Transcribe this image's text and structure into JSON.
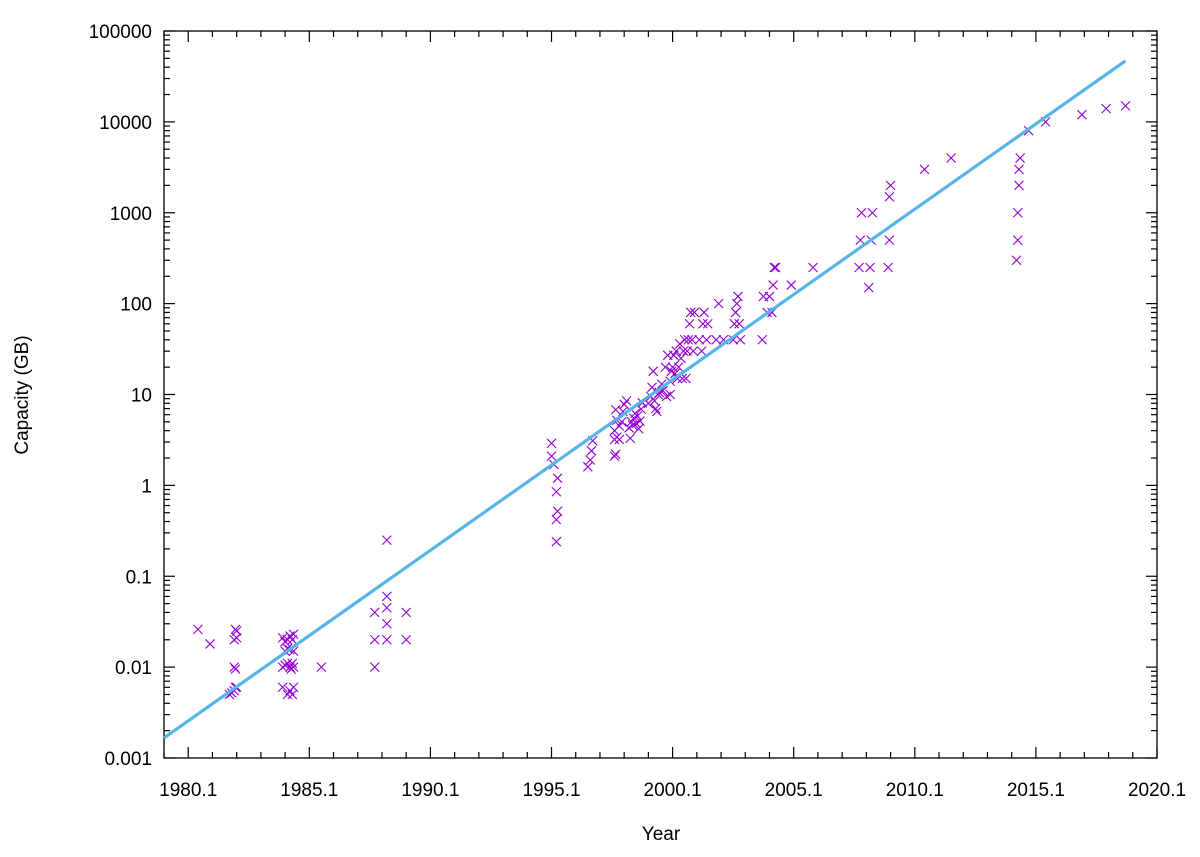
{
  "chart_data": {
    "type": "scatter",
    "xlabel": "Year",
    "ylabel": "Capacity (GB)",
    "xscale": "linear",
    "yscale": "log",
    "xlim": [
      1979.1,
      2020.1
    ],
    "ylim": [
      0.001,
      100000
    ],
    "xticks": [
      1980.1,
      1985.1,
      1990.1,
      1995.1,
      2000.1,
      2005.1,
      2010.1,
      2015.1,
      2020.1
    ],
    "xtick_labels": [
      "1980.1",
      "1985.1",
      "1990.1",
      "1995.1",
      "2000.1",
      "2005.1",
      "2010.1",
      "2015.1",
      "2020.1"
    ],
    "yticks": [
      0.001,
      0.01,
      0.1,
      1,
      10,
      100,
      1000,
      10000,
      100000
    ],
    "ytick_labels": [
      "0.001",
      "0.01",
      "0.1",
      "1",
      "10",
      "100",
      "1000",
      "10000",
      "100000"
    ],
    "grid": false,
    "legend": "none",
    "colors": {
      "points": "#9400d3",
      "fit": "#56b4e9"
    },
    "fit_line": [
      [
        1979.15,
        0.0017
      ],
      [
        2018.75,
        46000
      ]
    ],
    "points": [
      [
        1980.5,
        0.026
      ],
      [
        1981.0,
        0.018
      ],
      [
        1981.8,
        0.005
      ],
      [
        1981.9,
        0.0052
      ],
      [
        1982.0,
        0.0055
      ],
      [
        1982.05,
        0.006
      ],
      [
        1982.1,
        0.006
      ],
      [
        1982.0,
        0.01
      ],
      [
        1982.05,
        0.0095
      ],
      [
        1982.0,
        0.02
      ],
      [
        1982.05,
        0.026
      ],
      [
        1982.1,
        0.021
      ],
      [
        1982.1,
        0.025
      ],
      [
        1984.0,
        0.006
      ],
      [
        1984.2,
        0.005
      ],
      [
        1984.3,
        0.0055
      ],
      [
        1984.4,
        0.005
      ],
      [
        1984.45,
        0.006
      ],
      [
        1984.0,
        0.01
      ],
      [
        1984.1,
        0.0105
      ],
      [
        1984.2,
        0.011
      ],
      [
        1984.3,
        0.01
      ],
      [
        1984.35,
        0.0095
      ],
      [
        1984.4,
        0.011
      ],
      [
        1984.45,
        0.01
      ],
      [
        1984.1,
        0.015
      ],
      [
        1984.2,
        0.016
      ],
      [
        1984.3,
        0.0155
      ],
      [
        1984.45,
        0.015
      ],
      [
        1984.0,
        0.021
      ],
      [
        1984.1,
        0.019
      ],
      [
        1984.2,
        0.02
      ],
      [
        1984.3,
        0.022
      ],
      [
        1984.4,
        0.02
      ],
      [
        1984.45,
        0.023
      ],
      [
        1985.6,
        0.01
      ],
      [
        1987.8,
        0.01
      ],
      [
        1987.8,
        0.02
      ],
      [
        1987.8,
        0.04
      ],
      [
        1988.3,
        0.02
      ],
      [
        1988.3,
        0.03
      ],
      [
        1988.3,
        0.045
      ],
      [
        1988.3,
        0.06
      ],
      [
        1988.3,
        0.25
      ],
      [
        1989.1,
        0.02
      ],
      [
        1989.1,
        0.04
      ],
      [
        1995.1,
        2.9
      ],
      [
        1995.1,
        2.1
      ],
      [
        1995.2,
        1.7
      ],
      [
        1995.35,
        1.2
      ],
      [
        1995.3,
        0.85
      ],
      [
        1995.35,
        0.52
      ],
      [
        1995.3,
        0.42
      ],
      [
        1995.3,
        0.24
      ],
      [
        1996.6,
        1.6
      ],
      [
        1996.7,
        1.9
      ],
      [
        1996.75,
        2.4
      ],
      [
        1996.8,
        3.1
      ],
      [
        1997.7,
        2.1
      ],
      [
        1997.75,
        2.2
      ],
      [
        1997.7,
        3.2
      ],
      [
        1997.8,
        3.4
      ],
      [
        1997.9,
        3.2
      ],
      [
        1997.7,
        4.0
      ],
      [
        1997.9,
        4.5
      ],
      [
        1997.8,
        5.2
      ],
      [
        1997.75,
        6.8
      ],
      [
        1998.0,
        5.0
      ],
      [
        1998.05,
        6.5
      ],
      [
        1998.1,
        7.8
      ],
      [
        1998.2,
        8.5
      ],
      [
        1998.3,
        4.3
      ],
      [
        1998.35,
        3.3
      ],
      [
        1998.4,
        5.0
      ],
      [
        1998.45,
        4.6
      ],
      [
        1998.5,
        5.5
      ],
      [
        1998.55,
        6.2
      ],
      [
        1998.6,
        4.8
      ],
      [
        1998.65,
        5.8
      ],
      [
        1998.7,
        4.2
      ],
      [
        1998.75,
        5.1
      ],
      [
        1998.8,
        6.9
      ],
      [
        1998.85,
        8.1
      ],
      [
        1999.1,
        8.0
      ],
      [
        1999.2,
        9.5
      ],
      [
        1999.25,
        12.0
      ],
      [
        1999.3,
        18.0
      ],
      [
        1999.35,
        8.5
      ],
      [
        1999.4,
        7.0
      ],
      [
        1999.45,
        6.5
      ],
      [
        1999.5,
        10.0
      ],
      [
        1999.55,
        10.5
      ],
      [
        1999.65,
        13.0
      ],
      [
        1999.7,
        11.0
      ],
      [
        1999.8,
        20.0
      ],
      [
        1999.9,
        27.0
      ],
      [
        1999.85,
        9.5
      ],
      [
        2000.0,
        10.0
      ],
      [
        2000.0,
        14.0
      ],
      [
        2000.05,
        18.0
      ],
      [
        2000.1,
        20.0
      ],
      [
        2000.15,
        27.0
      ],
      [
        2000.2,
        17.0
      ],
      [
        2000.25,
        30.0
      ],
      [
        2000.3,
        15.0
      ],
      [
        2000.35,
        20.0
      ],
      [
        2000.4,
        36.0
      ],
      [
        2000.45,
        25.0
      ],
      [
        2000.5,
        15.0
      ],
      [
        2000.55,
        30.0
      ],
      [
        2000.6,
        40.0
      ],
      [
        2000.65,
        15.0
      ],
      [
        2000.7,
        30.0
      ],
      [
        2000.75,
        40.0
      ],
      [
        2000.8,
        60.0
      ],
      [
        2000.85,
        80.0
      ],
      [
        2000.9,
        40.0
      ],
      [
        2000.95,
        30.0
      ],
      [
        2001.0,
        80.0
      ],
      [
        2001.2,
        40.0
      ],
      [
        2001.3,
        30.0
      ],
      [
        2001.35,
        60.0
      ],
      [
        2001.4,
        80.0
      ],
      [
        2001.5,
        40.0
      ],
      [
        2001.55,
        60.0
      ],
      [
        2001.9,
        40.0
      ],
      [
        2002.0,
        100.0
      ],
      [
        2002.2,
        40.0
      ],
      [
        2002.6,
        40.0
      ],
      [
        2002.65,
        60.0
      ],
      [
        2002.7,
        80.0
      ],
      [
        2002.75,
        100.0
      ],
      [
        2002.8,
        120.0
      ],
      [
        2002.85,
        60.0
      ],
      [
        2002.9,
        40.0
      ],
      [
        2003.8,
        40.0
      ],
      [
        2003.85,
        120.0
      ],
      [
        2004.0,
        80.0
      ],
      [
        2004.1,
        120.0
      ],
      [
        2004.2,
        80.0
      ],
      [
        2004.25,
        160.0
      ],
      [
        2004.3,
        250.0
      ],
      [
        2004.35,
        250.0
      ],
      [
        2005.0,
        160.0
      ],
      [
        2005.9,
        250.0
      ],
      [
        2007.8,
        250.0
      ],
      [
        2007.85,
        500.0
      ],
      [
        2007.9,
        1000.0
      ],
      [
        2008.2,
        150.0
      ],
      [
        2008.25,
        250.0
      ],
      [
        2008.3,
        500.0
      ],
      [
        2008.35,
        1000.0
      ],
      [
        2009.0,
        250.0
      ],
      [
        2009.05,
        500.0
      ],
      [
        2009.05,
        1500.0
      ],
      [
        2009.1,
        2000.0
      ],
      [
        2010.5,
        3000.0
      ],
      [
        2011.6,
        4000.0
      ],
      [
        2014.3,
        300.0
      ],
      [
        2014.35,
        500.0
      ],
      [
        2014.35,
        1000.0
      ],
      [
        2014.4,
        2000.0
      ],
      [
        2014.4,
        3000.0
      ],
      [
        2014.45,
        4000.0
      ],
      [
        2014.8,
        8000.0
      ],
      [
        2015.5,
        10000.0
      ],
      [
        2017.0,
        12000.0
      ],
      [
        2018.0,
        14000.0
      ],
      [
        2018.8,
        15000.0
      ]
    ]
  }
}
